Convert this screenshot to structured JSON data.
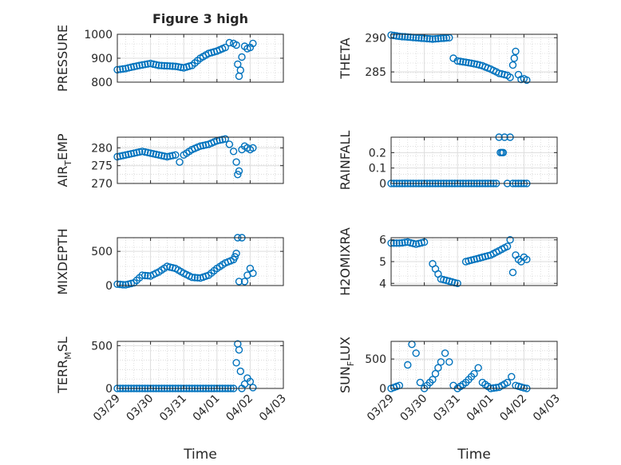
{
  "figure": {
    "title": "Figure 3 high",
    "xlabel": "Time",
    "date_ticks": [
      "03/29",
      "03/30",
      "03/31",
      "04/01",
      "04/02",
      "04/03"
    ],
    "marker_color": "#0072BD"
  },
  "chart_data": [
    {
      "type": "scatter",
      "ylabel": "PRESSURE",
      "ylim": [
        800,
        1000
      ],
      "yticks": [
        "1000",
        "900",
        "800"
      ],
      "ytick_values": [
        1000,
        900,
        800
      ],
      "x": [
        "03/29 00:00",
        "03/29 06:00",
        "03/29 12:00",
        "03/29 18:00",
        "03/30 00:00",
        "03/30 06:00",
        "03/30 12:00",
        "03/30 18:00",
        "03/31 00:00",
        "03/31 06:00",
        "03/31 12:00",
        "03/31 18:00",
        "04/01 00:00",
        "04/01 06:00",
        "04/01 09:00",
        "04/01 12:00",
        "04/01 14:00",
        "04/01 15:00",
        "04/01 16:00",
        "04/01 17:00",
        "04/01 18:00",
        "04/01 20:00",
        "04/01 22:00",
        "04/02 00:00",
        "04/02 02:00"
      ],
      "y": [
        852,
        857,
        865,
        872,
        878,
        870,
        868,
        866,
        860,
        870,
        900,
        920,
        930,
        945,
        965,
        962,
        955,
        875,
        825,
        850,
        905,
        950,
        940,
        945,
        962
      ]
    },
    {
      "type": "scatter",
      "ylabel": "THETA",
      "ylim": [
        283.5,
        290.5
      ],
      "yticks": [
        "290",
        "285"
      ],
      "ytick_values": [
        290,
        285
      ],
      "x": [
        "03/29 00:00",
        "03/29 06:00",
        "03/29 12:00",
        "03/29 18:00",
        "03/30 00:00",
        "03/30 06:00",
        "03/30 12:00",
        "03/30 18:00",
        "03/30 21:00",
        "03/31 00:00",
        "03/31 06:00",
        "03/31 12:00",
        "03/31 18:00",
        "04/01 00:00",
        "04/01 06:00",
        "04/01 12:00",
        "04/01 14:00",
        "04/01 16:00",
        "04/01 17:00",
        "04/01 18:00",
        "04/01 20:00",
        "04/01 22:00",
        "04/02 00:00",
        "04/02 02:00"
      ],
      "y": [
        290.4,
        290.2,
        290.1,
        290.0,
        289.9,
        289.8,
        289.9,
        290.0,
        287.0,
        286.6,
        286.4,
        286.2,
        285.9,
        285.4,
        284.8,
        284.5,
        284.2,
        286.0,
        287.0,
        288.0,
        284.6,
        283.9,
        284.0,
        283.8
      ]
    },
    {
      "type": "scatter",
      "ylabel_main": "AIR",
      "ylabel_sub": "T",
      "ylabel_rest": "EMP",
      "ylim": [
        270,
        283
      ],
      "yticks": [
        "280",
        "275",
        "270"
      ],
      "ytick_values": [
        280,
        275,
        270
      ],
      "x": [
        "03/29 00:00",
        "03/29 06:00",
        "03/29 12:00",
        "03/29 18:00",
        "03/30 00:00",
        "03/30 06:00",
        "03/30 12:00",
        "03/30 18:00",
        "03/30 21:00",
        "03/31 00:00",
        "03/31 06:00",
        "03/31 12:00",
        "03/31 18:00",
        "04/01 00:00",
        "04/01 06:00",
        "04/01 09:00",
        "04/01 12:00",
        "04/01 14:00",
        "04/01 15:00",
        "04/01 16:00",
        "04/01 18:00",
        "04/01 20:00",
        "04/01 22:00",
        "04/02 00:00",
        "04/02 02:00"
      ],
      "y": [
        277.5,
        278.0,
        278.5,
        279.0,
        278.5,
        278.0,
        277.5,
        278.0,
        276.0,
        278.0,
        279.5,
        280.5,
        281.0,
        282.0,
        282.5,
        281.0,
        279.0,
        276.0,
        272.5,
        273.5,
        279.5,
        280.5,
        280.0,
        279.5,
        280.0
      ]
    },
    {
      "type": "scatter",
      "ylabel": "RAINFALL",
      "ylim": [
        0,
        0.3
      ],
      "yticks": [
        "0.2",
        "0.1",
        "0"
      ],
      "ytick_values": [
        0.2,
        0.1,
        0
      ],
      "x": [
        "03/29 00:00",
        "03/29 12:00",
        "03/30 00:00",
        "03/30 12:00",
        "03/31 00:00",
        "03/31 12:00",
        "04/01 00:00",
        "04/01 04:00",
        "04/01 06:00",
        "04/01 07:00",
        "04/01 08:00",
        "04/01 09:00",
        "04/01 10:00",
        "04/01 12:00",
        "04/01 14:00",
        "04/01 16:00",
        "04/01 20:00",
        "04/02 00:00",
        "04/02 02:00"
      ],
      "y": [
        0,
        0,
        0,
        0,
        0,
        0,
        0,
        0,
        0.3,
        0.2,
        0.2,
        0.2,
        0.3,
        0,
        0.3,
        0,
        0,
        0,
        0
      ]
    },
    {
      "type": "scatter",
      "ylabel": "MIXDEPTH",
      "ylim": [
        0,
        700
      ],
      "yticks": [
        "500",
        "0"
      ],
      "ytick_values": [
        500,
        0
      ],
      "x": [
        "03/29 00:00",
        "03/29 06:00",
        "03/29 12:00",
        "03/29 18:00",
        "03/30 00:00",
        "03/30 06:00",
        "03/30 12:00",
        "03/30 18:00",
        "03/31 00:00",
        "03/31 06:00",
        "03/31 12:00",
        "03/31 18:00",
        "04/01 00:00",
        "04/01 06:00",
        "04/01 12:00",
        "04/01 13:00",
        "04/01 14:00",
        "04/01 15:00",
        "04/01 16:00",
        "04/01 18:00",
        "04/01 20:00",
        "04/01 22:00",
        "04/02 00:00",
        "04/02 02:00"
      ],
      "y": [
        20,
        10,
        40,
        150,
        140,
        200,
        280,
        250,
        180,
        120,
        110,
        150,
        250,
        330,
        380,
        420,
        470,
        700,
        60,
        700,
        60,
        150,
        250,
        180
      ]
    },
    {
      "type": "scatter",
      "ylabel": "H2OMIXRA",
      "ylim": [
        3.9,
        6.1
      ],
      "yticks": [
        "6",
        "5",
        "4"
      ],
      "ytick_values": [
        6,
        5,
        4
      ],
      "x": [
        "03/29 00:00",
        "03/29 06:00",
        "03/29 12:00",
        "03/29 18:00",
        "03/30 00:00",
        "03/30 06:00",
        "03/30 12:00",
        "03/30 18:00",
        "03/31 00:00",
        "03/31 06:00",
        "03/31 12:00",
        "03/31 18:00",
        "04/01 00:00",
        "04/01 06:00",
        "04/01 12:00",
        "04/01 14:00",
        "04/01 16:00",
        "04/01 18:00",
        "04/01 20:00",
        "04/01 22:00",
        "04/02 00:00",
        "04/02 02:00"
      ],
      "y": [
        5.85,
        5.85,
        5.9,
        5.8,
        5.9,
        4.9,
        4.2,
        4.1,
        4.0,
        5.0,
        5.1,
        5.2,
        5.3,
        5.5,
        5.7,
        6.0,
        4.5,
        5.3,
        5.1,
        5.0,
        5.2,
        5.1
      ]
    },
    {
      "type": "scatter",
      "ylabel_main": "TERR",
      "ylabel_sub": "M",
      "ylabel_rest": "SL",
      "ylim": [
        0,
        550
      ],
      "yticks": [
        "500",
        "0"
      ],
      "ytick_values": [
        500,
        0
      ],
      "x": [
        "03/29 00:00",
        "03/29 12:00",
        "03/30 00:00",
        "03/30 12:00",
        "03/31 00:00",
        "03/31 12:00",
        "04/01 00:00",
        "04/01 06:00",
        "04/01 12:00",
        "04/01 14:00",
        "04/01 15:00",
        "04/01 16:00",
        "04/01 17:00",
        "04/01 18:00",
        "04/01 20:00",
        "04/01 22:00",
        "04/02 00:00",
        "04/02 02:00"
      ],
      "y": [
        0,
        0,
        0,
        0,
        0,
        0,
        0,
        0,
        0,
        300,
        520,
        450,
        200,
        0,
        50,
        120,
        80,
        10
      ]
    },
    {
      "type": "scatter",
      "ylabel_main": "SUN",
      "ylabel_sub": "F",
      "ylabel_rest": "LUX",
      "ylim": [
        0,
        800
      ],
      "yticks": [
        "500",
        "0"
      ],
      "ytick_values": [
        500,
        0
      ],
      "x": [
        "03/29 00:00",
        "03/29 06:00",
        "03/29 12:00",
        "03/29 15:00",
        "03/29 18:00",
        "03/29 21:00",
        "03/30 00:00",
        "03/30 06:00",
        "03/30 12:00",
        "03/30 15:00",
        "03/30 18:00",
        "03/30 21:00",
        "03/31 00:00",
        "03/31 06:00",
        "03/31 12:00",
        "03/31 15:00",
        "03/31 18:00",
        "04/01 00:00",
        "04/01 06:00",
        "04/01 12:00",
        "04/01 15:00",
        "04/01 18:00",
        "04/02 00:00",
        "04/02 02:00"
      ],
      "y": [
        0,
        50,
        400,
        750,
        600,
        100,
        0,
        150,
        450,
        600,
        450,
        50,
        0,
        100,
        250,
        350,
        100,
        0,
        20,
        100,
        200,
        50,
        10,
        0
      ]
    }
  ]
}
